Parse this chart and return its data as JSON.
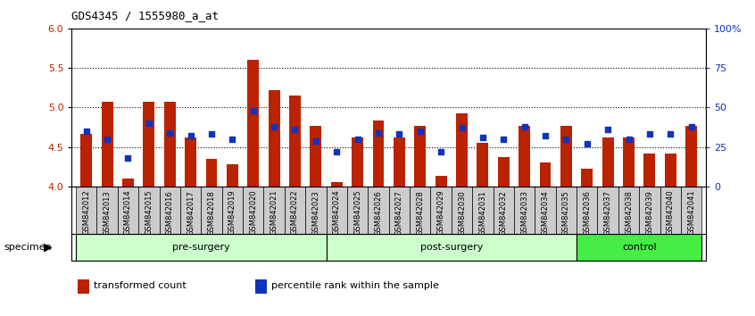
{
  "title": "GDS4345 / 1555980_a_at",
  "samples": [
    "GSM842012",
    "GSM842013",
    "GSM842014",
    "GSM842015",
    "GSM842016",
    "GSM842017",
    "GSM842018",
    "GSM842019",
    "GSM842020",
    "GSM842021",
    "GSM842022",
    "GSM842023",
    "GSM842024",
    "GSM842025",
    "GSM842026",
    "GSM842027",
    "GSM842028",
    "GSM842029",
    "GSM842030",
    "GSM842031",
    "GSM842032",
    "GSM842033",
    "GSM842034",
    "GSM842035",
    "GSM842036",
    "GSM842037",
    "GSM842038",
    "GSM842039",
    "GSM842040",
    "GSM842041"
  ],
  "bar_values": [
    4.67,
    5.07,
    4.1,
    5.07,
    5.07,
    4.62,
    4.35,
    4.28,
    5.6,
    5.22,
    5.15,
    4.77,
    4.05,
    4.62,
    4.83,
    4.62,
    4.77,
    4.13,
    4.92,
    4.55,
    4.37,
    4.77,
    4.3,
    4.77,
    4.23,
    4.62,
    4.62,
    4.42,
    4.42,
    4.77
  ],
  "dot_values": [
    35,
    30,
    18,
    40,
    34,
    32,
    33,
    30,
    48,
    38,
    36,
    29,
    22,
    30,
    34,
    33,
    35,
    22,
    37,
    31,
    30,
    38,
    32,
    30,
    27,
    36,
    30,
    33,
    33,
    38
  ],
  "ylim_left": [
    4.0,
    6.0
  ],
  "ylim_right": [
    0,
    100
  ],
  "yticks_left": [
    4.0,
    4.5,
    5.0,
    5.5,
    6.0
  ],
  "yticks_right": [
    0,
    25,
    50,
    75,
    100
  ],
  "ytick_labels_right": [
    "0",
    "25",
    "50",
    "75",
    "100%"
  ],
  "bar_color": "#bb2200",
  "dot_color": "#1133bb",
  "group_pre_color": "#ccffcc",
  "group_post_color": "#ccffcc",
  "group_ctrl_color": "#44ee44",
  "groups": [
    {
      "label": "pre-surgery",
      "start": 0,
      "end": 12
    },
    {
      "label": "post-surgery",
      "start": 12,
      "end": 24
    },
    {
      "label": "control",
      "start": 24,
      "end": 30
    }
  ],
  "legend_items": [
    {
      "label": "transformed count",
      "color": "#bb2200"
    },
    {
      "label": "percentile rank within the sample",
      "color": "#1133bb"
    }
  ],
  "specimen_label": "specimen",
  "bar_width": 0.55,
  "dot_size": 22,
  "hgrid_values": [
    4.5,
    5.0,
    5.5
  ],
  "xticklabel_bg": "#cccccc"
}
